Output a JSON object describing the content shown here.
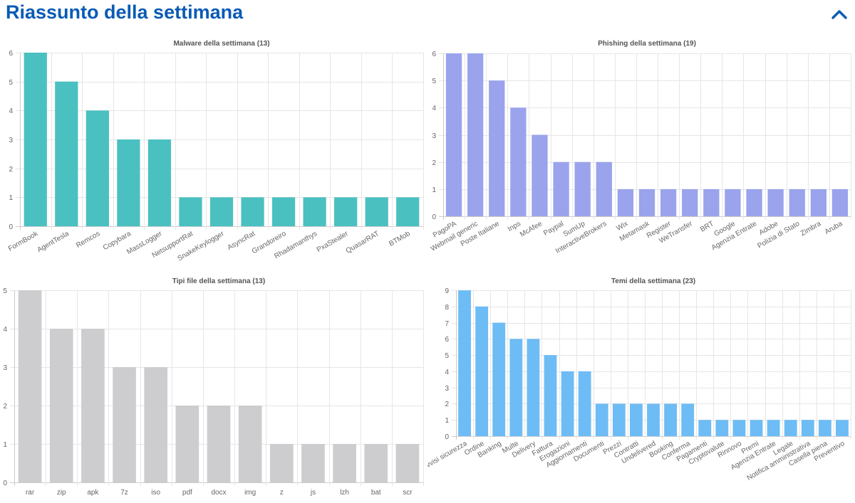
{
  "header": {
    "title": "Riassunto della settimana",
    "collapse_icon": "chevron-up-icon",
    "accent_color": "#0a5bb5"
  },
  "chart_data": [
    {
      "id": "malware",
      "type": "bar",
      "title": "Malware della settimana (13)",
      "categories": [
        "FormBook",
        "AgentTesla",
        "Remcos",
        "Copybara",
        "MassLogger",
        "NetsupportRat",
        "SnakeKeylogger",
        "AsyncRat",
        "Grandoreiro",
        "Rhadamanthys",
        "PxaStealer",
        "QuasarRAT",
        "BTMob"
      ],
      "values": [
        6,
        5,
        4,
        3,
        3,
        1,
        1,
        1,
        1,
        1,
        1,
        1,
        1
      ],
      "ylim": [
        0,
        6
      ],
      "yticks": [
        0,
        1,
        2,
        3,
        4,
        5,
        6
      ],
      "color": "#4bc0c0",
      "grid": true,
      "rotated_labels": true
    },
    {
      "id": "phishing",
      "type": "bar",
      "title": "Phishing della settimana (19)",
      "categories": [
        "PagoPA",
        "Webmail generic",
        "Poste Italiane",
        "Inps",
        "McAfee",
        "Paypal",
        "SumUp",
        "InteractiveBrokers",
        "Wix",
        "Metamask",
        "Register",
        "WeTransfer",
        "BRT",
        "Google",
        "Agenzia Entrate",
        "Adobe",
        "Polizia di Stato",
        "Zimbra",
        "Aruba"
      ],
      "values": [
        6,
        6,
        5,
        4,
        3,
        2,
        2,
        2,
        1,
        1,
        1,
        1,
        1,
        1,
        1,
        1,
        1,
        1,
        1
      ],
      "ylim": [
        0,
        6
      ],
      "yticks": [
        0,
        1,
        2,
        3,
        4,
        5,
        6
      ],
      "color": "#9aa3ec",
      "grid": true,
      "rotated_labels": true
    },
    {
      "id": "filetypes",
      "type": "bar",
      "title": "Tipi file della settimana (13)",
      "categories": [
        "rar",
        "zip",
        "apk",
        "7z",
        "iso",
        "pdf",
        "docx",
        "img",
        "z",
        "js",
        "lzh",
        "bat",
        "scr"
      ],
      "values": [
        5,
        4,
        4,
        3,
        3,
        2,
        2,
        2,
        1,
        1,
        1,
        1,
        1
      ],
      "ylim": [
        0,
        5
      ],
      "yticks": [
        0,
        1,
        2,
        3,
        4,
        5
      ],
      "color": "#cdcdd0",
      "grid": true,
      "rotated_labels": false
    },
    {
      "id": "themes",
      "type": "bar",
      "title": "Temi della settimana (23)",
      "categories": [
        "Avvisi sicurezza",
        "Ordine",
        "Banking",
        "Multe",
        "Delivery",
        "Fattura",
        "Erogazioni",
        "Aggiornamenti",
        "Documenti",
        "Prezzi",
        "Contratti",
        "Undelivered",
        "Booking",
        "Conferma",
        "Pagamenti",
        "Cryptovalute",
        "Rinnovo",
        "Premi",
        "Agenzia Entrate",
        "Legale",
        "Notifica amministrativa",
        "Casella piena",
        "Preventivo"
      ],
      "values": [
        9,
        8,
        7,
        6,
        6,
        5,
        4,
        4,
        2,
        2,
        2,
        2,
        2,
        2,
        1,
        1,
        1,
        1,
        1,
        1,
        1,
        1,
        1
      ],
      "ylim": [
        0,
        9
      ],
      "yticks": [
        0,
        1,
        2,
        3,
        4,
        5,
        6,
        7,
        8,
        9
      ],
      "color": "#6ebcf5",
      "grid": true,
      "rotated_labels": true
    }
  ]
}
